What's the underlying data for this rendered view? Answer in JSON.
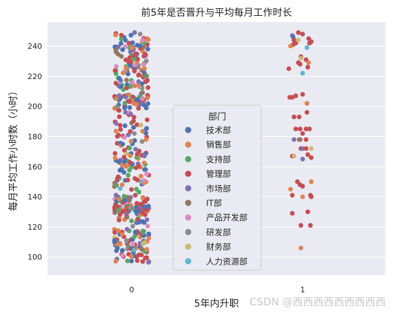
{
  "chart_data": {
    "type": "scatter",
    "title": "前5年是否晋升与平均每月工作时长",
    "xlabel": "5年内升职",
    "ylabel": "每月平均工作小时数（小时）",
    "x_categories": [
      "0",
      "1"
    ],
    "y_ticks": [
      100,
      120,
      140,
      160,
      180,
      200,
      220,
      240
    ],
    "ylim": [
      88,
      256
    ],
    "grid": true,
    "legend_position": "center",
    "legend_title": "部门",
    "series": [
      {
        "name": "技术部",
        "color": "#4c72b0"
      },
      {
        "name": "销售部",
        "color": "#dd8452"
      },
      {
        "name": "支持部",
        "color": "#55a868"
      },
      {
        "name": "管理部",
        "color": "#c44e52"
      },
      {
        "name": "市场部",
        "color": "#8172b3"
      },
      {
        "name": "IT部",
        "color": "#937860"
      },
      {
        "name": "产品开发部",
        "color": "#da8bc3"
      },
      {
        "name": "研发部",
        "color": "#8c8c8c"
      },
      {
        "name": "财务部",
        "color": "#ccb974"
      },
      {
        "name": "人力资源部",
        "color": "#64b5cd"
      }
    ],
    "group1_points": [
      {
        "s": 3,
        "j": -0.05,
        "y": 249
      },
      {
        "s": 3,
        "j": 0.0,
        "y": 248
      },
      {
        "s": 4,
        "j": -0.12,
        "y": 247
      },
      {
        "s": 0,
        "j": -0.11,
        "y": 246
      },
      {
        "s": 3,
        "j": -0.1,
        "y": 244
      },
      {
        "s": 3,
        "j": 0.07,
        "y": 245
      },
      {
        "s": 3,
        "j": 0.1,
        "y": 243
      },
      {
        "s": 3,
        "j": -0.08,
        "y": 242
      },
      {
        "s": 3,
        "j": -0.11,
        "y": 241
      },
      {
        "s": 8,
        "j": -0.05,
        "y": 244
      },
      {
        "s": 3,
        "j": 0.08,
        "y": 242
      },
      {
        "s": 1,
        "j": -0.14,
        "y": 240
      },
      {
        "s": 9,
        "j": 0.05,
        "y": 239
      },
      {
        "s": 3,
        "j": -0.02,
        "y": 233
      },
      {
        "s": 8,
        "j": -0.02,
        "y": 232
      },
      {
        "s": 3,
        "j": 0.04,
        "y": 231
      },
      {
        "s": 3,
        "j": -0.05,
        "y": 229
      },
      {
        "s": 1,
        "j": 0.07,
        "y": 229
      },
      {
        "s": 3,
        "j": 0.06,
        "y": 226
      },
      {
        "s": 3,
        "j": -0.16,
        "y": 225
      },
      {
        "s": 9,
        "j": 0.0,
        "y": 222
      },
      {
        "s": 3,
        "j": -0.03,
        "y": 228
      },
      {
        "s": 3,
        "j": 0.0,
        "y": 208
      },
      {
        "s": 3,
        "j": -0.08,
        "y": 207
      },
      {
        "s": 3,
        "j": -0.15,
        "y": 206
      },
      {
        "s": 3,
        "j": -0.12,
        "y": 206
      },
      {
        "s": 1,
        "j": 0.05,
        "y": 202
      },
      {
        "s": 3,
        "j": 0.05,
        "y": 196
      },
      {
        "s": 3,
        "j": -0.1,
        "y": 193
      },
      {
        "s": 3,
        "j": -0.04,
        "y": 193
      },
      {
        "s": 3,
        "j": -0.08,
        "y": 185
      },
      {
        "s": 3,
        "j": -0.03,
        "y": 185
      },
      {
        "s": 3,
        "j": 0.04,
        "y": 185
      },
      {
        "s": 3,
        "j": 0.08,
        "y": 185
      },
      {
        "s": 3,
        "j": 0.0,
        "y": 182
      },
      {
        "s": 4,
        "j": -0.1,
        "y": 178
      },
      {
        "s": 3,
        "j": -0.03,
        "y": 178
      },
      {
        "s": 3,
        "j": 0.04,
        "y": 178
      },
      {
        "s": 5,
        "j": -0.04,
        "y": 178
      },
      {
        "s": 3,
        "j": -0.02,
        "y": 172
      },
      {
        "s": 4,
        "j": 0.0,
        "y": 172
      },
      {
        "s": 3,
        "j": 0.04,
        "y": 172
      },
      {
        "s": 8,
        "j": 0.1,
        "y": 172
      },
      {
        "s": 3,
        "j": 0.06,
        "y": 168
      },
      {
        "s": 3,
        "j": -0.12,
        "y": 167
      },
      {
        "s": 8,
        "j": -0.1,
        "y": 167
      },
      {
        "s": 4,
        "j": 0.0,
        "y": 165
      },
      {
        "s": 3,
        "j": 0.1,
        "y": 166
      },
      {
        "s": 3,
        "j": -0.06,
        "y": 150
      },
      {
        "s": 3,
        "j": -0.03,
        "y": 148
      },
      {
        "s": 1,
        "j": 0.1,
        "y": 150
      },
      {
        "s": 3,
        "j": 0.0,
        "y": 147
      },
      {
        "s": 1,
        "j": -0.14,
        "y": 145
      },
      {
        "s": 3,
        "j": -0.12,
        "y": 141
      },
      {
        "s": 3,
        "j": 0.09,
        "y": 141
      },
      {
        "s": 3,
        "j": 0.1,
        "y": 140
      },
      {
        "s": 1,
        "j": 0.0,
        "y": 140
      },
      {
        "s": 3,
        "j": -0.12,
        "y": 129
      },
      {
        "s": 3,
        "j": 0.06,
        "y": 130
      },
      {
        "s": 3,
        "j": -0.02,
        "y": 121
      },
      {
        "s": 3,
        "j": 0.09,
        "y": 121
      },
      {
        "s": 1,
        "j": -0.02,
        "y": 106
      }
    ],
    "annotations": [
      "CSDN @西西西西西西西西西"
    ]
  }
}
